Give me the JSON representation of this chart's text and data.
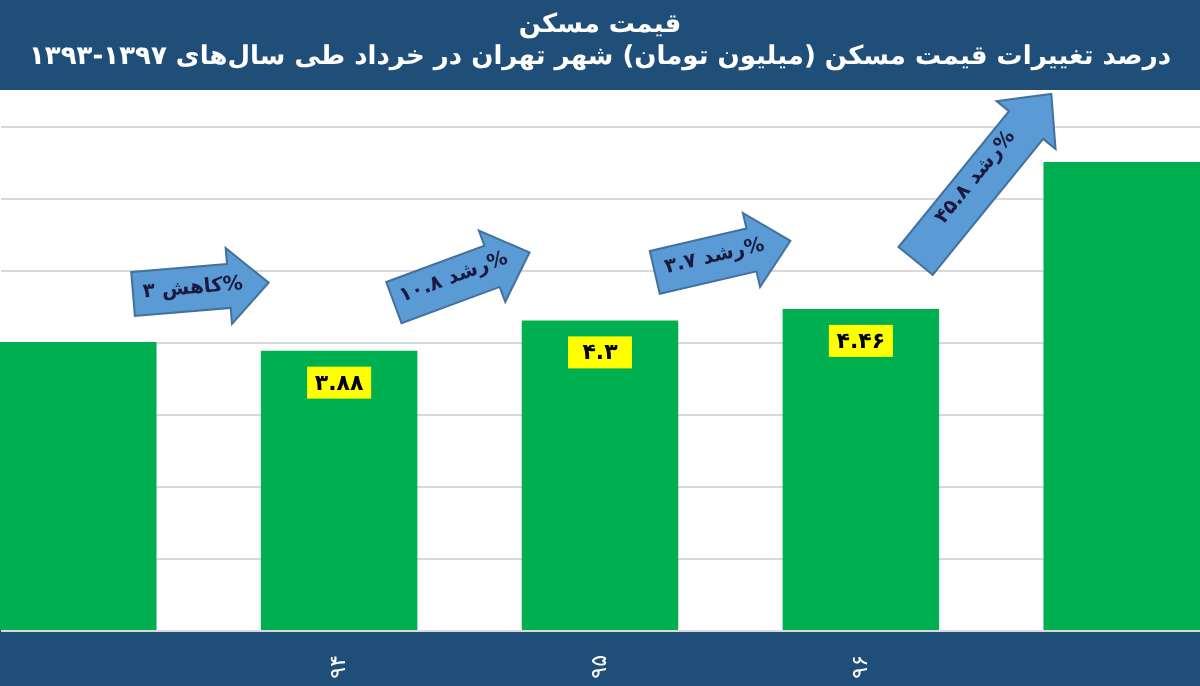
{
  "chart_data": {
    "type": "bar",
    "title": "قیمت مسکن",
    "subtitle": "درصد تغییرات قیمت مسکن (میلیون تومان) شهر تهران در خرداد طی سال‌های ۱۳۹۷-۱۳۹۳",
    "categories": [
      null,
      "۹۴",
      "۹۵",
      "۹۶",
      null
    ],
    "values": [
      4.0,
      3.88,
      4.3,
      4.46,
      6.5
    ],
    "value_labels": [
      null,
      "۳.۸۸",
      "۴.۳",
      "۴.۴۶",
      null
    ],
    "color": "#00b050",
    "ylim": [
      0,
      7.5
    ],
    "yticks": [
      {
        "value": 0,
        "label": null
      },
      {
        "value": 1,
        "label": null
      },
      {
        "value": 2,
        "label": null
      },
      {
        "value": 3,
        "label": null
      },
      {
        "value": 4,
        "label": null
      },
      {
        "value": 5,
        "label": null
      },
      {
        "value": 6,
        "label": null
      },
      {
        "value": 7,
        "label": null
      }
    ],
    "grid": "y",
    "tick_labels": "x",
    "annotations": [
      "کاهش ۳%",
      "رشد ۱۰.۸%",
      "رشد ۳.۷%",
      "رشد ۴۵.۸%"
    ]
  }
}
